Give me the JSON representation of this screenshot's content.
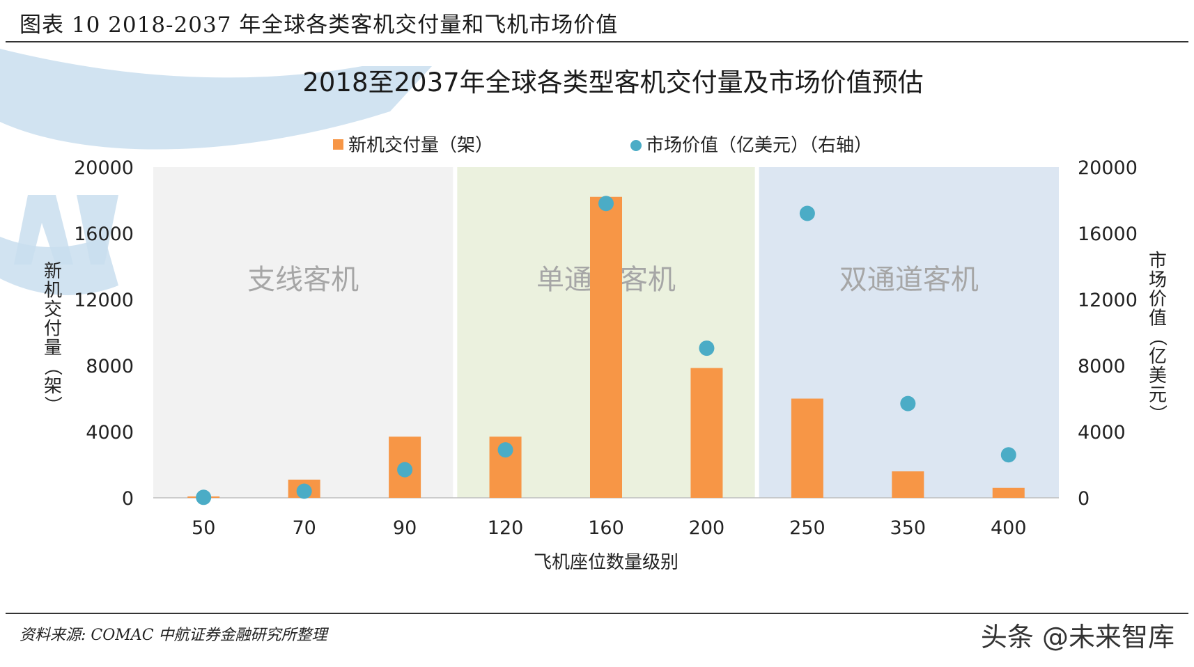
{
  "figure_header": "图表 10 2018-2037 年全球各类客机交付量和飞机市场价值",
  "source_note": "资料来源: COMAC 中航证券金融研究所整理",
  "credit": "头条 @未来智库",
  "colors": {
    "bar": "#F79646",
    "dot": "#4BACC6",
    "region_regional": "#F2F2F2",
    "region_narrow": "#EBF1DE",
    "region_wide": "#DCE6F2",
    "watermark": "#C9DEEE"
  },
  "chart_data": {
    "type": "bar",
    "title": "2018至2037年全球各类型客机交付量及市场价值预估",
    "xlabel": "飞机座位数量级别",
    "ylabel": "新机交付量（架）",
    "ylabel_right": "市场价值（亿美元）",
    "legend_position": "top",
    "categories": [
      "50",
      "70",
      "90",
      "120",
      "160",
      "200",
      "250",
      "350",
      "400"
    ],
    "ylim": [
      0,
      20000
    ],
    "ylim_right": [
      0,
      20000
    ],
    "yticks": [
      "0",
      "4000",
      "8000",
      "12000",
      "16000",
      "20000"
    ],
    "yticks_right": [
      "0",
      "4000",
      "8000",
      "12000",
      "16000",
      "20000"
    ],
    "series": [
      {
        "name": "新机交付量（架）",
        "type": "bar",
        "axis": "left",
        "values": [
          80,
          1100,
          3700,
          3700,
          18200,
          7850,
          6000,
          1600,
          600
        ]
      },
      {
        "name": "市场价值（亿美元）（右轴）",
        "type": "scatter",
        "axis": "right",
        "values": [
          30,
          400,
          1700,
          2900,
          17800,
          9050,
          17200,
          5700,
          2600
        ]
      }
    ],
    "regions": [
      {
        "label": "支线客机",
        "from": 0,
        "to": 2
      },
      {
        "label": "单通道客机",
        "from": 3,
        "to": 5
      },
      {
        "label": "双通道客机",
        "from": 6,
        "to": 8
      }
    ]
  }
}
